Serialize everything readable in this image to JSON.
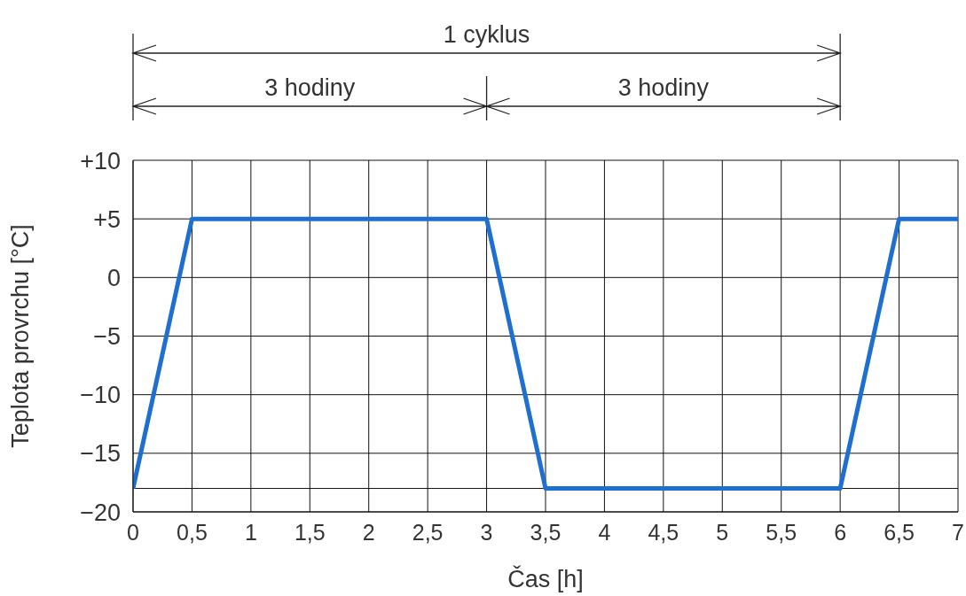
{
  "chart_data": {
    "type": "line",
    "xlabel": "Čas [h]",
    "ylabel": "Teplota provrchu [°C]",
    "x": [
      0,
      0.5,
      3,
      3.5,
      6,
      6.5,
      7
    ],
    "series": [
      {
        "color": "#1f6fd1",
        "values": [
          -18,
          5,
          5,
          -18,
          -18,
          5,
          5
        ]
      }
    ],
    "xlim": [
      0,
      7
    ],
    "xticks": [
      0,
      {
        "value": 0.5,
        "label": "0,5"
      },
      1,
      {
        "value": 1.5,
        "label": "1,5"
      },
      2,
      {
        "value": 2.5,
        "label": "2,5"
      },
      3,
      {
        "value": 3.5,
        "label": "3,5"
      },
      4,
      {
        "value": 4.5,
        "label": "4,5"
      },
      5,
      {
        "value": 5.5,
        "label": "5,5"
      },
      6,
      {
        "value": 6.5,
        "label": "6,5"
      },
      7
    ],
    "ylim": [
      -20,
      10
    ],
    "yticks": [
      {
        "value": -20,
        "label": "−20"
      },
      {
        "value": -18,
        "label": null
      },
      {
        "value": -15,
        "label": "−15"
      },
      {
        "value": -10,
        "label": "−10"
      },
      {
        "value": -5,
        "label": "−5"
      },
      0,
      {
        "value": 5,
        "label": "+5"
      },
      {
        "value": 10,
        "label": "+10"
      }
    ],
    "annotations": [
      "1 cyklus",
      "3 hodiny",
      "3 hodiny"
    ],
    "grid": true,
    "legend": false,
    "marker": "none",
    "line_style": "solid"
  }
}
